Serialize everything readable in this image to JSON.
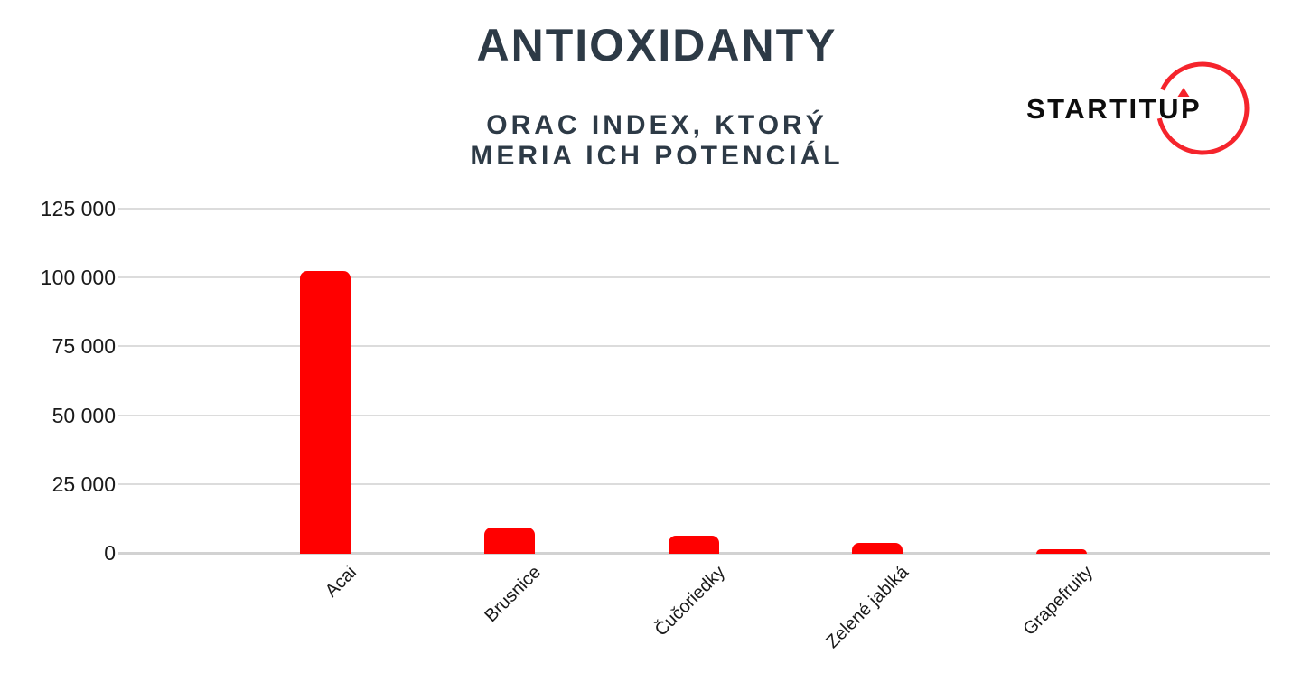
{
  "header": {
    "title": "ANTIOXIDANTY",
    "subtitle_lines": [
      "ORAC INDEX, KTORÝ",
      "MERIA ICH POTENCIÁL"
    ],
    "text_color": "#2d3a46"
  },
  "logo": {
    "text": "STARTITUP",
    "text_color": "#0d0d0d",
    "ring_color": "#f5242c",
    "arrow_color": "#f5242c"
  },
  "chart_data": {
    "type": "bar",
    "title": "ANTIOXIDANTY",
    "subtitle": "ORAC INDEX, KTORÝ MERIA ICH POTENCIÁL",
    "categories": [
      "Acai",
      "Brusnice",
      "Čučoriedky",
      "Zelené jablká",
      "Grapefruity"
    ],
    "values": [
      102700,
      9584,
      6552,
      3898,
      1548
    ],
    "bar_color": "#ff0000",
    "xlabel": "",
    "ylabel": "",
    "ylim": [
      0,
      125000
    ],
    "ytick_values": [
      125000,
      100000,
      75000,
      50000,
      25000,
      0
    ],
    "ytick_labels": [
      "125 000",
      "100 000",
      "75 000",
      "50 000",
      "25 000",
      "0"
    ],
    "grid": "horizontal",
    "gridline_color": "#dcdcdc",
    "legend": "none",
    "xtick_rotation_deg": -45
  }
}
